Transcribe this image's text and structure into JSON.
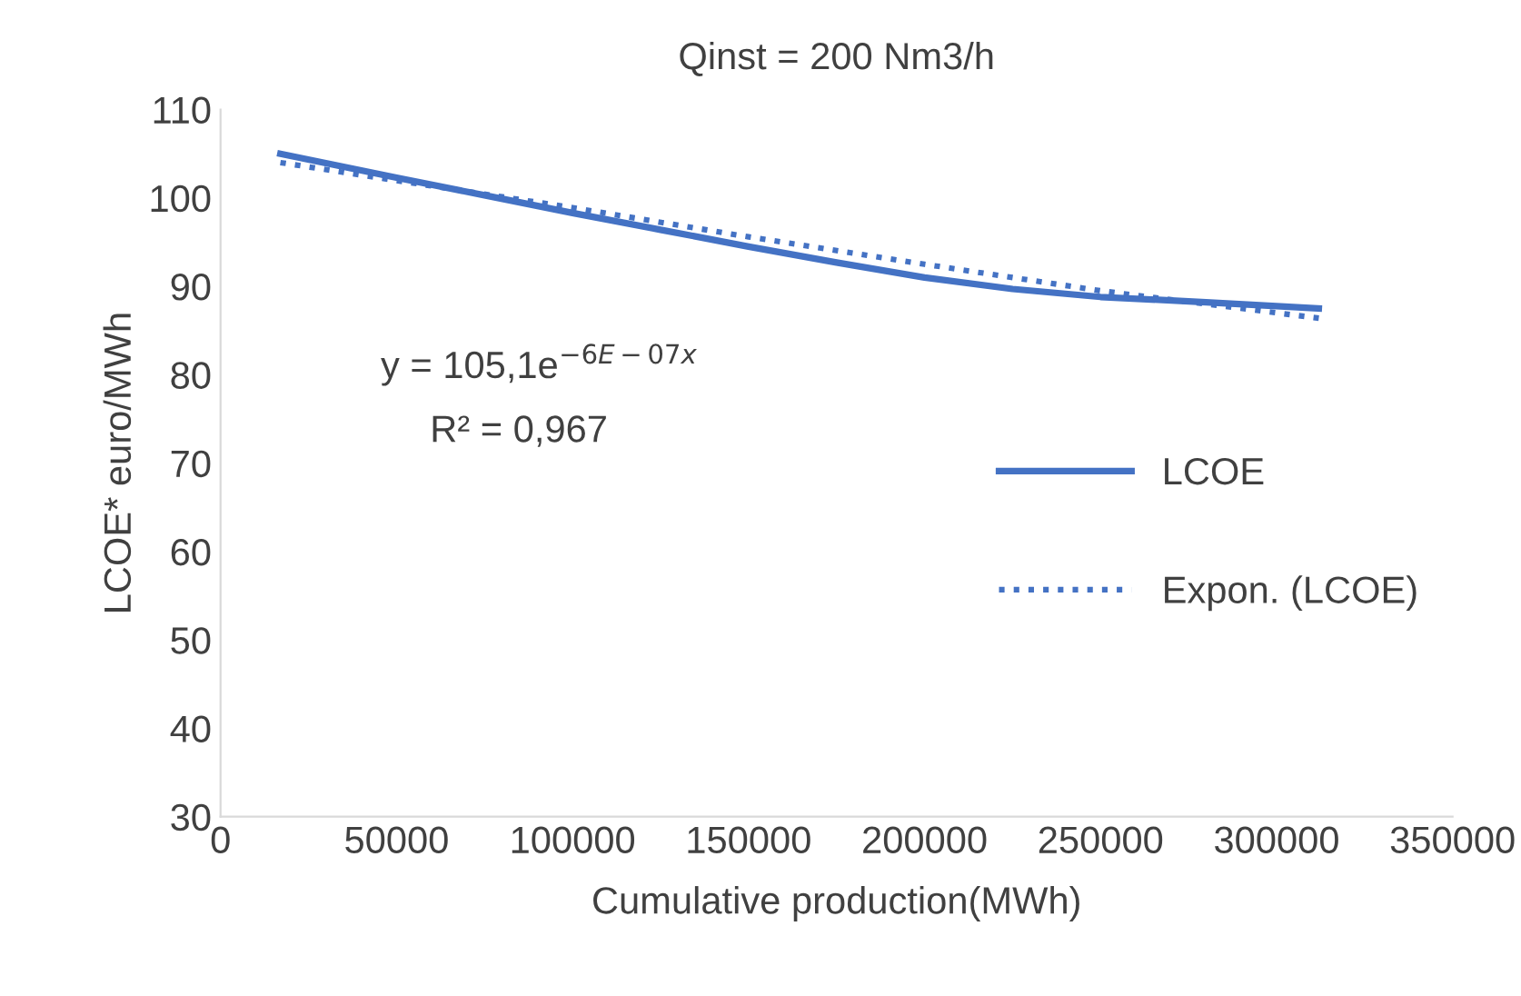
{
  "chart_data": {
    "type": "line",
    "title": "Qinst = 200 Nm3/h",
    "xlabel": "Cumulative production(MWh)",
    "ylabel": "LCOE* euro/MWh",
    "series": [
      {
        "name": "LCOE",
        "color": "#4472c4",
        "line_style": "solid",
        "x": [
          17000,
          50000,
          75000,
          100000,
          125000,
          150000,
          175000,
          200000,
          225000,
          250000,
          280000,
          312000
        ],
        "values": [
          105.0,
          102.3,
          100.3,
          98.3,
          96.4,
          94.5,
          92.7,
          91.0,
          89.7,
          88.8,
          88.2,
          87.5
        ]
      },
      {
        "name": "Expon. (LCOE)",
        "color": "#4472c4",
        "line_style": "dotted",
        "x": [
          17000,
          100000,
          150000,
          200000,
          250000,
          312000
        ],
        "values": [
          104.0,
          98.9,
          95.6,
          92.5,
          89.5,
          86.4
        ]
      }
    ],
    "xlim": [
      0,
      350000
    ],
    "xticks": [
      0,
      50000,
      100000,
      150000,
      200000,
      250000,
      300000,
      350000
    ],
    "ylim": [
      30,
      110
    ],
    "yticks": [
      30,
      40,
      50,
      60,
      70,
      80,
      90,
      100,
      110
    ],
    "annotations": [
      "y = 105,1e$^{−6E−07x}$",
      "R² = 0,967"
    ],
    "legend": "center right",
    "grid": false
  }
}
